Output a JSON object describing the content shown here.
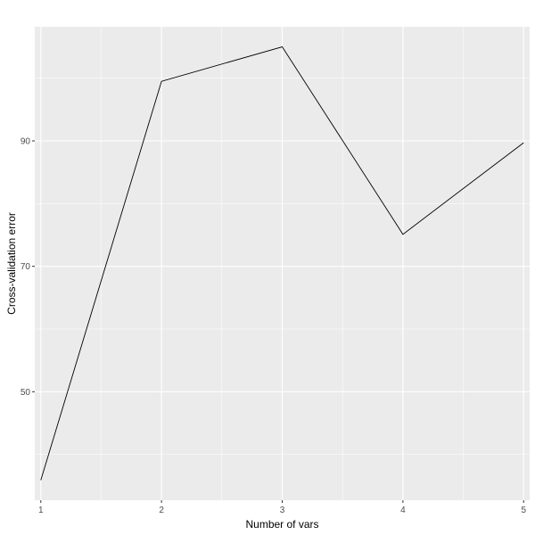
{
  "chart_data": {
    "type": "line",
    "title": "",
    "xlabel": "Number of vars",
    "ylabel": "Cross-validation error",
    "x": [
      1,
      2,
      3,
      4,
      5
    ],
    "series": [
      {
        "values": [
          35.9,
          99.5,
          105.0,
          75.1,
          89.7
        ]
      }
    ],
    "x_ticks": [
      "1",
      "2",
      "3",
      "4",
      "5"
    ],
    "y_ticks": [
      "50",
      "70",
      "90"
    ],
    "xlim": [
      0.95,
      5.05
    ],
    "ylim": [
      32.7,
      108.2
    ],
    "grid": true,
    "legend": "none",
    "colors": {
      "panel_background": "#ebebeb",
      "grid_major": "#ffffff",
      "line": "#000000"
    }
  }
}
